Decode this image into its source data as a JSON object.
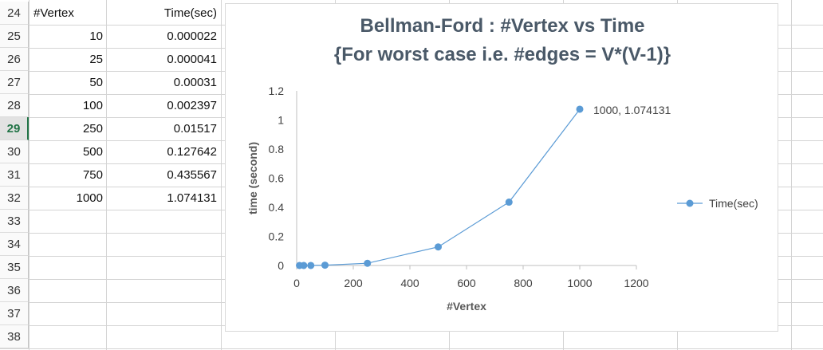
{
  "spreadsheet": {
    "header_row": {
      "row": "24",
      "col_a": "#Vertex",
      "col_b": "Time(sec)"
    },
    "rows": [
      {
        "row": "25",
        "vertex": "10",
        "time": "0.000022"
      },
      {
        "row": "26",
        "vertex": "25",
        "time": "0.000041"
      },
      {
        "row": "27",
        "vertex": "50",
        "time": "0.00031"
      },
      {
        "row": "28",
        "vertex": "100",
        "time": "0.002397"
      },
      {
        "row": "29",
        "vertex": "250",
        "time": "0.01517"
      },
      {
        "row": "30",
        "vertex": "500",
        "time": "0.127642"
      },
      {
        "row": "31",
        "vertex": "750",
        "time": "0.435567"
      },
      {
        "row": "32",
        "vertex": "1000",
        "time": "1.074131"
      }
    ],
    "empty_rows": [
      "33",
      "34",
      "35",
      "36",
      "37",
      "38"
    ],
    "selected_row": "29",
    "selected_row_color": "#217346"
  },
  "chart_data": {
    "type": "scatter",
    "title_line1": "Bellman-Ford : #Vertex vs Time",
    "title_line2": "{For worst case i.e. #edges = V*(V-1)}",
    "xlabel": "#Vertex",
    "ylabel": "time (second)",
    "xlim": [
      0,
      1200
    ],
    "ylim": [
      0,
      1.2
    ],
    "xticks": [
      0,
      200,
      400,
      600,
      800,
      1000,
      1200
    ],
    "yticks": [
      0,
      0.2,
      0.4,
      0.6,
      0.8,
      1,
      1.2
    ],
    "grid": false,
    "legend_position": "right",
    "series": [
      {
        "name": "Time(sec)",
        "color": "#5b9bd5",
        "x": [
          10,
          25,
          50,
          100,
          250,
          500,
          750,
          1000
        ],
        "y": [
          2.2e-05,
          4.1e-05,
          0.00031,
          0.002397,
          0.01517,
          0.127642,
          0.435567,
          1.074131
        ]
      }
    ],
    "annotation": {
      "text": "1000, 1.074131",
      "point_index": 7
    }
  }
}
